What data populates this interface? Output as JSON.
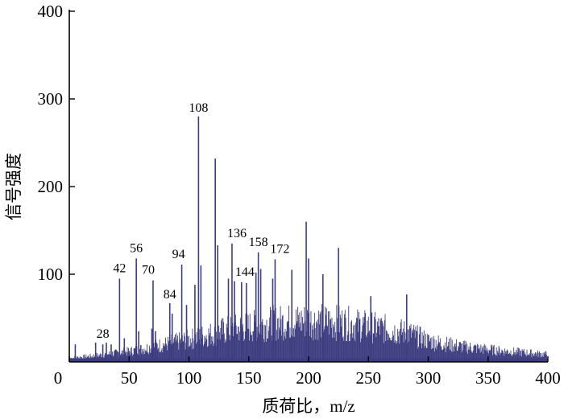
{
  "chart_data": {
    "type": "bar",
    "title": "",
    "xlabel": "质荷比，m/z",
    "ylabel": "信号强度",
    "xlim": [
      0,
      400
    ],
    "ylim": [
      0,
      400
    ],
    "x_ticks": [
      0,
      50,
      100,
      150,
      200,
      250,
      300,
      350,
      400
    ],
    "y_ticks": [
      100,
      200,
      300,
      400
    ],
    "y_tick_labels": [
      "100",
      "200",
      "300",
      "400"
    ],
    "x_tick_labels": [
      "0",
      "50",
      "100",
      "150",
      "200",
      "250",
      "300",
      "350",
      "400"
    ],
    "grid": false,
    "bar_color": "#3d3d80",
    "labeled_peaks": [
      {
        "x": 28,
        "value": 20,
        "label": "28"
      },
      {
        "x": 42,
        "value": 95,
        "label": "42"
      },
      {
        "x": 56,
        "value": 118,
        "label": "56"
      },
      {
        "x": 70,
        "value": 93,
        "label": "70"
      },
      {
        "x": 84,
        "value": 67,
        "label": "84"
      },
      {
        "x": 94,
        "value": 111,
        "label": "94"
      },
      {
        "x": 108,
        "value": 280,
        "label": "108"
      },
      {
        "x": 136,
        "value": 135,
        "label": "136"
      },
      {
        "x": 144,
        "value": 91,
        "label": "144"
      },
      {
        "x": 158,
        "value": 125,
        "label": "158"
      },
      {
        "x": 172,
        "value": 117,
        "label": "172"
      }
    ],
    "other_peaks": [
      {
        "x": 5,
        "value": 20
      },
      {
        "x": 22,
        "value": 22
      },
      {
        "x": 31,
        "value": 22
      },
      {
        "x": 35,
        "value": 20
      },
      {
        "x": 46,
        "value": 27
      },
      {
        "x": 58,
        "value": 35
      },
      {
        "x": 69,
        "value": 38
      },
      {
        "x": 72,
        "value": 35
      },
      {
        "x": 86,
        "value": 55
      },
      {
        "x": 98,
        "value": 65
      },
      {
        "x": 105,
        "value": 88
      },
      {
        "x": 110,
        "value": 110
      },
      {
        "x": 122,
        "value": 232
      },
      {
        "x": 124,
        "value": 133
      },
      {
        "x": 133,
        "value": 95
      },
      {
        "x": 138,
        "value": 92
      },
      {
        "x": 148,
        "value": 90
      },
      {
        "x": 156,
        "value": 102
      },
      {
        "x": 160,
        "value": 106
      },
      {
        "x": 170,
        "value": 95
      },
      {
        "x": 186,
        "value": 105
      },
      {
        "x": 198,
        "value": 160
      },
      {
        "x": 200,
        "value": 118
      },
      {
        "x": 212,
        "value": 100
      },
      {
        "x": 225,
        "value": 130
      },
      {
        "x": 252,
        "value": 75
      },
      {
        "x": 282,
        "value": 77
      }
    ],
    "baseline_envelope": [
      {
        "x": 0,
        "value": 5
      },
      {
        "x": 20,
        "value": 8
      },
      {
        "x": 50,
        "value": 14
      },
      {
        "x": 100,
        "value": 30
      },
      {
        "x": 130,
        "value": 42
      },
      {
        "x": 170,
        "value": 52
      },
      {
        "x": 200,
        "value": 55
      },
      {
        "x": 230,
        "value": 52
      },
      {
        "x": 260,
        "value": 45
      },
      {
        "x": 285,
        "value": 38
      },
      {
        "x": 300,
        "value": 28
      },
      {
        "x": 330,
        "value": 20
      },
      {
        "x": 360,
        "value": 15
      },
      {
        "x": 400,
        "value": 10
      }
    ]
  }
}
